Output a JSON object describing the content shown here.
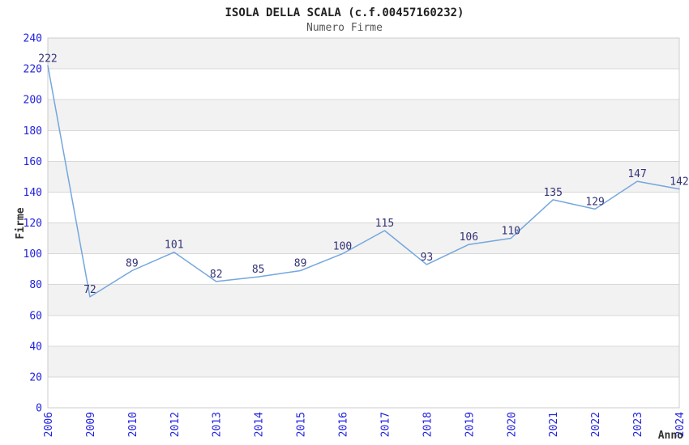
{
  "title": "ISOLA DELLA SCALA (c.f.00457160232)",
  "subtitle": "Numero Firme",
  "chart_data": {
    "type": "line",
    "title": "ISOLA DELLA SCALA (c.f.00457160232)",
    "subtitle": "Numero Firme",
    "xlabel": "Anno",
    "ylabel": "Firme",
    "categories": [
      "2006",
      "2009",
      "2010",
      "2012",
      "2013",
      "2014",
      "2015",
      "2016",
      "2017",
      "2018",
      "2019",
      "2020",
      "2021",
      "2022",
      "2023",
      "2024"
    ],
    "series": [
      {
        "name": "Numero Firme",
        "values": [
          222,
          72,
          89,
          101,
          82,
          85,
          89,
          100,
          115,
          93,
          106,
          110,
          135,
          129,
          147,
          142
        ]
      }
    ],
    "ylim": [
      0,
      240
    ],
    "ytick_step": 20,
    "yticks": [
      0,
      20,
      40,
      60,
      80,
      100,
      120,
      140,
      160,
      180,
      200,
      220,
      240
    ],
    "grid": true,
    "legend_position": "none",
    "x_label_rotation_deg": 90,
    "data_labels_visible": true,
    "colors": {
      "line": "#74a7dc",
      "tick_label": "#2222dd",
      "data_label": "#333377",
      "band": "#f2f2f2",
      "gridline": "#d8d8d8",
      "border": "#cccccc",
      "title": "#222222",
      "subtitle": "#555555",
      "axis_title": "#333333",
      "background": "#ffffff"
    }
  }
}
